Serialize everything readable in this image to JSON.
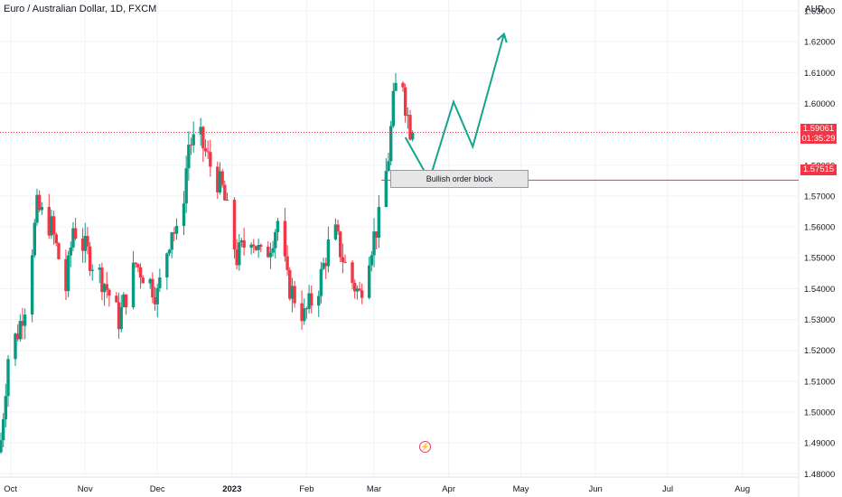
{
  "header": {
    "title": "Euro / Australian Dollar, 1D, FXCM",
    "currency": "AUD"
  },
  "annotations": {
    "order_block_label": "Bullish order block",
    "price_tag_current": "1.59061",
    "countdown": "01:35:29",
    "price_tag_level": "1.57515"
  },
  "icons": {
    "logo": "lightning-icon"
  },
  "colors": {
    "up": "#089981",
    "down": "#f23645",
    "projection": "#13a58f",
    "level_line": "#f23645",
    "grid": "#f0f3fa"
  },
  "chart_data": {
    "type": "candlestick",
    "title": "Euro / Australian Dollar, 1D, FXCM",
    "ylabel": "AUD",
    "ylim": [
      1.4725,
      1.6335
    ],
    "y_ticks": [
      "1.48000",
      "1.49000",
      "1.50000",
      "1.51000",
      "1.52000",
      "1.53000",
      "1.54000",
      "1.55000",
      "1.56000",
      "1.57000",
      "1.58000",
      "1.59000",
      "1.60000",
      "1.61000",
      "1.62000",
      "1.63000"
    ],
    "x_ticks": [
      "Oct",
      "Nov",
      "Dec",
      "2023",
      "Feb",
      "Mar",
      "Apr",
      "May",
      "Jun",
      "Jul",
      "Aug"
    ],
    "x_tick_dates": [
      "2022-10-01",
      "2022-11-01",
      "2022-12-01",
      "2023-01-01",
      "2023-02-01",
      "2023-03-01",
      "2023-04-01",
      "2023-05-01",
      "2023-06-01",
      "2023-07-01",
      "2023-08-01"
    ],
    "xlim": [
      "2022-09-27",
      "2023-08-24"
    ],
    "current_price": 1.59061,
    "level_price": 1.57515,
    "order_block": {
      "from": "2023-03-04",
      "to": "2023-04-30",
      "low": 1.5685,
      "high": 1.5752
    },
    "projection_path": [
      {
        "date": "2023-03-14",
        "price": 1.589
      },
      {
        "date": "2023-03-24",
        "price": 1.5752
      },
      {
        "date": "2023-04-03",
        "price": 1.6005
      },
      {
        "date": "2023-04-11",
        "price": 1.586
      },
      {
        "date": "2023-04-24",
        "price": 1.6225
      }
    ],
    "ohlc_anchors": [
      {
        "date": "2022-09-27",
        "close": 1.491
      },
      {
        "date": "2022-09-30",
        "close": 1.518
      },
      {
        "date": "2022-10-04",
        "close": 1.526
      },
      {
        "date": "2022-10-07",
        "close": 1.535
      },
      {
        "date": "2022-10-12",
        "close": 1.566
      },
      {
        "date": "2022-10-18",
        "close": 1.56
      },
      {
        "date": "2022-10-24",
        "close": 1.54
      },
      {
        "date": "2022-10-27",
        "close": 1.56
      },
      {
        "date": "2022-11-03",
        "close": 1.55
      },
      {
        "date": "2022-11-09",
        "close": 1.542
      },
      {
        "date": "2022-11-15",
        "close": 1.53
      },
      {
        "date": "2022-11-22",
        "close": 1.548
      },
      {
        "date": "2022-11-28",
        "close": 1.542
      },
      {
        "date": "2022-12-01",
        "close": 1.538
      },
      {
        "date": "2022-12-07",
        "close": 1.56
      },
      {
        "date": "2022-12-10",
        "close": 1.555
      },
      {
        "date": "2022-12-14",
        "close": 1.587
      },
      {
        "date": "2022-12-19",
        "close": 1.588
      },
      {
        "date": "2022-12-23",
        "close": 1.58
      },
      {
        "date": "2022-12-28",
        "close": 1.572
      },
      {
        "date": "2023-01-03",
        "close": 1.55
      },
      {
        "date": "2023-01-09",
        "close": 1.558
      },
      {
        "date": "2023-01-14",
        "close": 1.548
      },
      {
        "date": "2023-01-20",
        "close": 1.562
      },
      {
        "date": "2023-01-24",
        "close": 1.542
      },
      {
        "date": "2023-01-31",
        "close": 1.531
      },
      {
        "date": "2023-02-06",
        "close": 1.541
      },
      {
        "date": "2023-02-12",
        "close": 1.56
      },
      {
        "date": "2023-02-18",
        "close": 1.545
      },
      {
        "date": "2023-02-23",
        "close": 1.538
      },
      {
        "date": "2023-02-27",
        "close": 1.552
      },
      {
        "date": "2023-03-03",
        "close": 1.562
      },
      {
        "date": "2023-03-05",
        "close": 1.572
      },
      {
        "date": "2023-03-07",
        "close": 1.583
      },
      {
        "date": "2023-03-09",
        "close": 1.6
      },
      {
        "date": "2023-03-12",
        "close": 1.615
      },
      {
        "date": "2023-03-14",
        "close": 1.6
      },
      {
        "date": "2023-03-16",
        "close": 1.592
      },
      {
        "date": "2023-03-17",
        "close": 1.5906
      }
    ]
  }
}
